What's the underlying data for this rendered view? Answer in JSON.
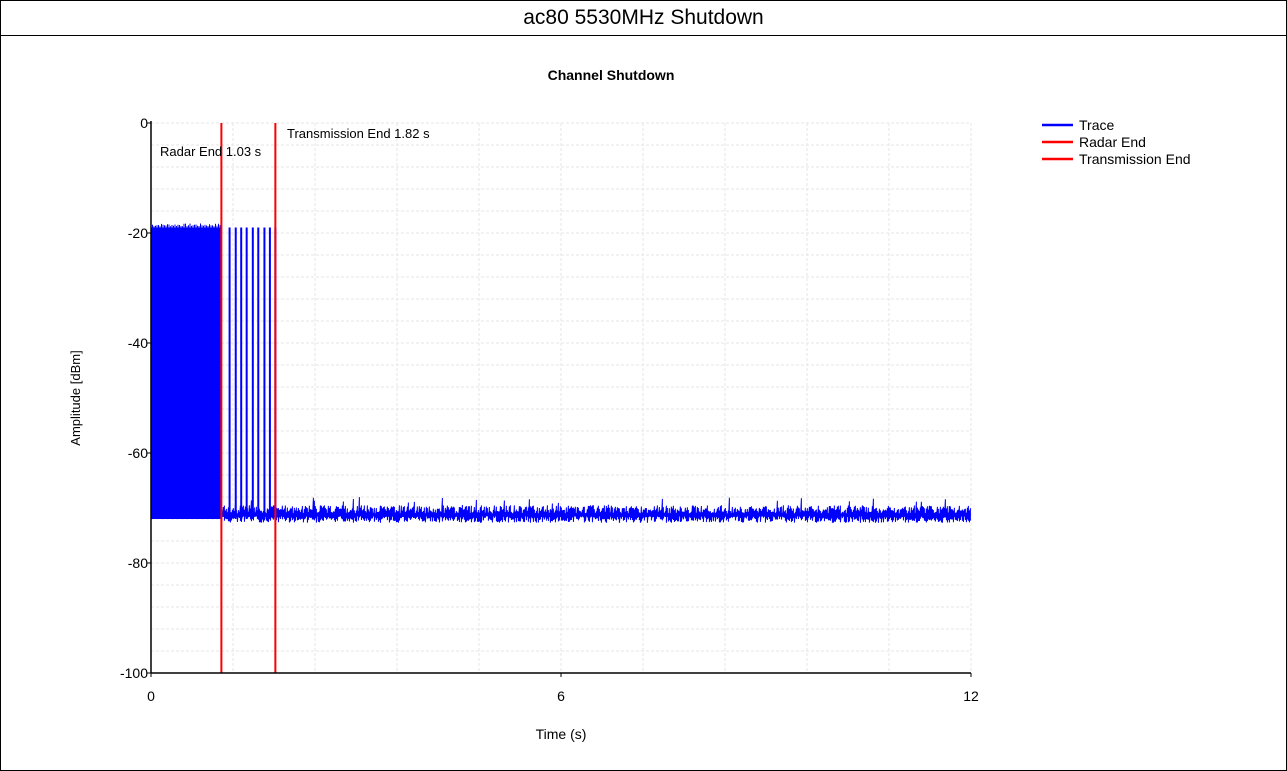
{
  "page_title": "ac80 5530MHz Shutdown",
  "colors": {
    "trace": "#0000ff",
    "radar_end": "#ff0000",
    "transmission_end": "#ff0000",
    "grid": "#e6e6e6",
    "axis": "#000000"
  },
  "chart_data": {
    "type": "line",
    "title": "Channel Shutdown",
    "xlabel": "Time (s)",
    "ylabel": "Amplitude [dBm]",
    "xlim": [
      0,
      12
    ],
    "ylim": [
      -100,
      0
    ],
    "x_ticks": [
      0,
      6,
      12
    ],
    "y_ticks": [
      0,
      -20,
      -40,
      -60,
      -80,
      -100
    ],
    "grid": true,
    "legend_position": "top-right",
    "legend": [
      "Trace",
      "Radar End",
      "Transmission End"
    ],
    "series": [
      {
        "name": "Trace",
        "description_segments": [
          {
            "x_range": [
              0,
              1.03
            ],
            "state": "dense bursts",
            "high": -19,
            "low": -72
          },
          {
            "x_range": [
              1.03,
              1.82
            ],
            "state": "sparse bursts",
            "high": -19,
            "low": -72,
            "burst_times": [
              1.15,
              1.24,
              1.32,
              1.4,
              1.49,
              1.57,
              1.66,
              1.74,
              1.82
            ]
          },
          {
            "x_range": [
              1.82,
              12
            ],
            "state": "noise floor",
            "mean": -71,
            "low": -72.5,
            "high": -69
          }
        ]
      }
    ],
    "markers": [
      {
        "name": "Radar End",
        "x": 1.03,
        "label": "Radar End 1.03 s"
      },
      {
        "name": "Transmission End",
        "x": 1.82,
        "label": "Transmission End 1.82 s"
      }
    ]
  }
}
